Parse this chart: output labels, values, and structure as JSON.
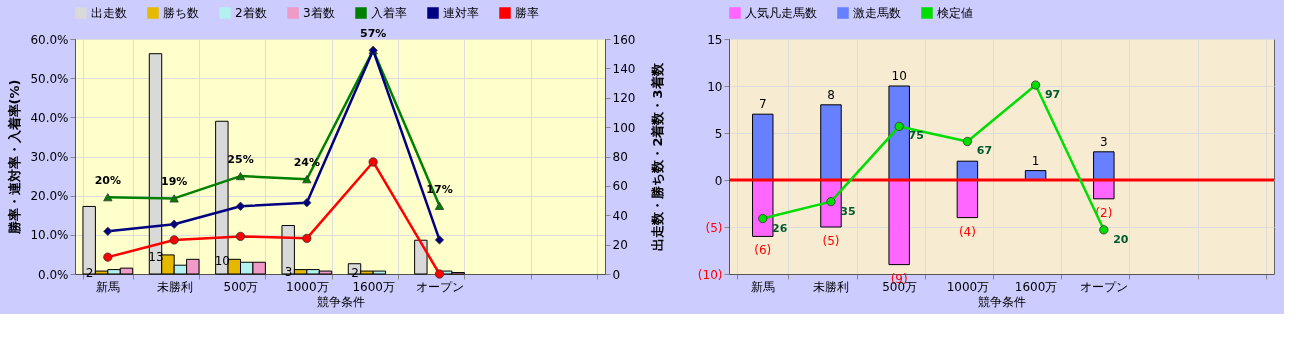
{
  "chart_data": [
    {
      "type": "bar",
      "categories": [
        "新馬",
        "未勝利",
        "500万",
        "1000万",
        "1600万",
        "オープン",
        null,
        null
      ],
      "xlabel": "競争条件",
      "ylabel": "勝率・連対率・入着率(%)",
      "y2label": "出走数・勝ち数・2着数・3着数",
      "ylim": [
        0,
        60
      ],
      "yticks": [
        {
          "value": 0,
          "label": "0.0%"
        },
        {
          "value": 10,
          "label": "10.0%"
        },
        {
          "value": 20,
          "label": "20.0%"
        },
        {
          "value": 30,
          "label": "30.0%"
        },
        {
          "value": 40,
          "label": "40.0%"
        },
        {
          "value": 50,
          "label": "50.0%"
        },
        {
          "value": 60,
          "label": "60.0%"
        }
      ],
      "y2lim": [
        0,
        160
      ],
      "y2ticks": [
        0,
        20,
        40,
        60,
        80,
        100,
        120,
        140,
        160
      ],
      "grid": true,
      "legend": "top",
      "series": [
        {
          "name": "出走数",
          "color": "#d9d9d9",
          "axis": "y2",
          "values": [
            46,
            150,
            104,
            33,
            7,
            23,
            null,
            null
          ]
        },
        {
          "name": "勝ち数",
          "color": "#e6b800",
          "axis": "y2",
          "values": [
            2,
            13,
            10,
            3,
            2,
            null,
            null,
            null
          ],
          "value_labels": [
            "2",
            "13",
            "10",
            "3",
            "2",
            null,
            null,
            null
          ]
        },
        {
          "name": "2着数",
          "color": "#b3f0f0",
          "axis": "y2",
          "values": [
            3,
            6,
            8,
            3,
            2,
            2,
            null,
            null
          ]
        },
        {
          "name": "3着数",
          "color": "#f09ac8",
          "axis": "y2",
          "values": [
            4,
            10,
            8,
            2,
            null,
            1,
            null,
            null
          ]
        },
        {
          "name": "入着率",
          "type": "line",
          "color": "#008000",
          "marker": "triangle",
          "values": [
            19.6,
            19.3,
            25.0,
            24.2,
            57.1,
            17.4,
            null,
            null
          ],
          "value_labels": [
            "20%",
            "19%",
            "25%",
            "24%",
            "57%",
            "17%",
            null,
            null
          ]
        },
        {
          "name": "連対率",
          "type": "line",
          "color": "#000080",
          "marker": "diamond",
          "values": [
            10.9,
            12.7,
            17.3,
            18.2,
            57.1,
            8.7,
            null,
            null
          ]
        },
        {
          "name": "勝率",
          "type": "line",
          "color": "#ff0000",
          "marker": "circle",
          "values": [
            4.3,
            8.7,
            9.6,
            9.1,
            28.6,
            0.0,
            null,
            null
          ]
        }
      ]
    },
    {
      "type": "bar",
      "stacked": true,
      "categories": [
        "新馬",
        "未勝利",
        "500万",
        "1000万",
        "1600万",
        "オープン",
        null,
        null
      ],
      "xlabel": "競争条件",
      "ylim": [
        -10,
        15
      ],
      "yticks": [
        {
          "value": -10,
          "label": "(10)"
        },
        {
          "value": -5,
          "label": "(5)"
        },
        0,
        5,
        10,
        15
      ],
      "y2lim": [
        -3.5,
        121.5
      ],
      "grid": true,
      "legend": "top",
      "ref_lines": [
        {
          "axis": "y",
          "value": 0,
          "color": "#ff0000"
        }
      ],
      "series": [
        {
          "name": "人気凡走馬数",
          "color": "#ff66ff",
          "values": [
            -6,
            -5,
            -9,
            -4,
            null,
            -2,
            null,
            null
          ],
          "value_labels": [
            "(6)",
            "(5)",
            "(9)",
            "(4)",
            null,
            "(2)",
            null,
            null
          ]
        },
        {
          "name": "激走馬数",
          "color": "#6680ff",
          "values": [
            7,
            8,
            10,
            2,
            1,
            3,
            null,
            null
          ],
          "value_labels": [
            "7",
            "8",
            "10",
            null,
            "1",
            "3",
            null,
            null
          ]
        },
        {
          "name": "検定値",
          "type": "line",
          "axis": "y2",
          "color": "#00dd00",
          "marker": "circle",
          "values": [
            26,
            35,
            75,
            67,
            97,
            20,
            null,
            null
          ],
          "data_labels": true
        }
      ]
    }
  ]
}
